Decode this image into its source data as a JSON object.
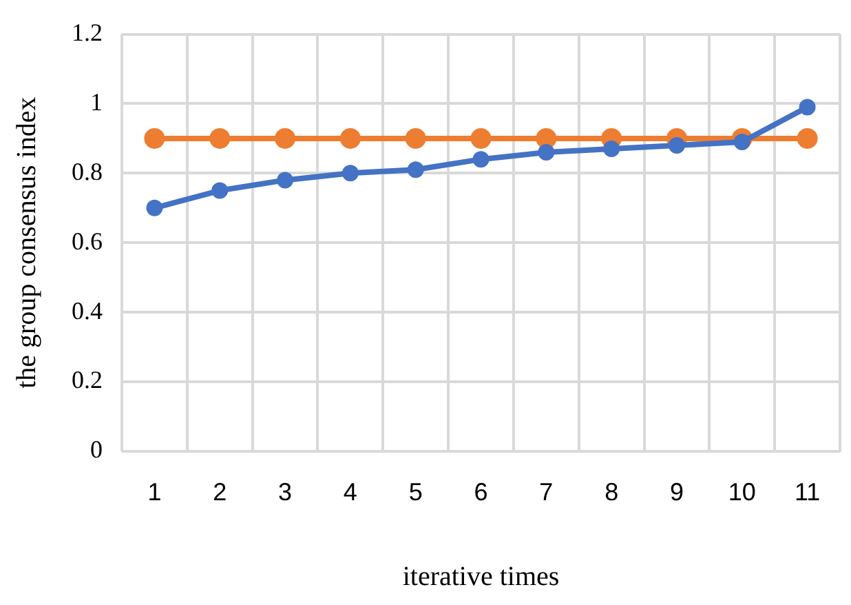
{
  "chart_data": {
    "type": "line",
    "xlabel": "iterative times",
    "ylabel": "the group consensus index",
    "categories": [
      "1",
      "2",
      "3",
      "4",
      "5",
      "6",
      "7",
      "8",
      "9",
      "10",
      "11"
    ],
    "series": [
      {
        "color": "#4472c4",
        "values": [
          0.7,
          0.75,
          0.78,
          0.8,
          0.81,
          0.84,
          0.86,
          0.87,
          0.88,
          0.89,
          0.99
        ]
      },
      {
        "color": "#ed7d31",
        "values": [
          0.9,
          0.9,
          0.9,
          0.9,
          0.9,
          0.9,
          0.9,
          0.9,
          0.9,
          0.9,
          0.9
        ]
      }
    ],
    "ylim": [
      0,
      1.2
    ],
    "yticks": [
      0,
      0.2,
      0.4,
      0.6,
      0.8,
      1,
      1.2
    ],
    "grid": true,
    "legend": false,
    "marker": "circle",
    "line_style": "solid"
  }
}
